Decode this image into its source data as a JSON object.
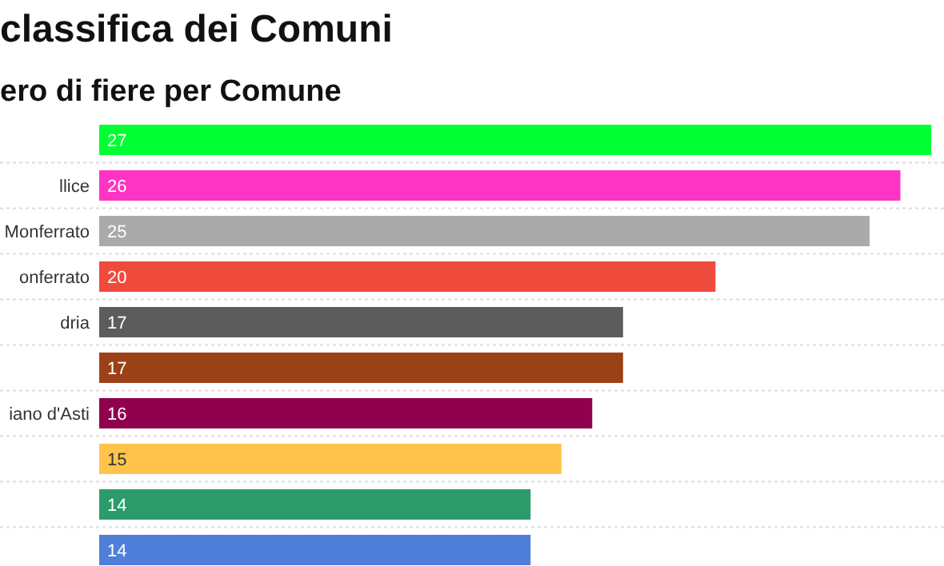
{
  "chart_data": {
    "type": "bar",
    "orientation": "horizontal",
    "title": "classifica dei Comuni",
    "subtitle": "ero di fiere per Comune",
    "categories": [
      null,
      "llice",
      "Monferrato",
      "onferrato",
      "dria",
      null,
      "iano d'Asti",
      null,
      null,
      null
    ],
    "values": [
      27,
      26,
      25,
      20,
      17,
      17,
      16,
      15,
      14,
      14
    ],
    "colors": [
      "#00ff33",
      "#ff33c4",
      "#aaaaaa",
      "#ef4b3c",
      "#5c5c5c",
      "#9b4117",
      "#8f004d",
      "#ffc34c",
      "#2c9b6c",
      "#4f7fd9"
    ],
    "data_labels": true
  }
}
